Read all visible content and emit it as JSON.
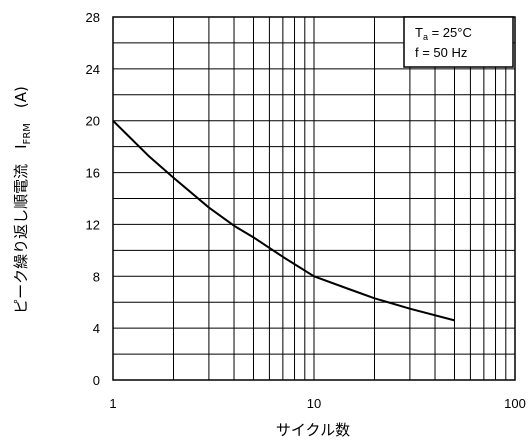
{
  "chart_data": {
    "type": "line",
    "xscale": "log",
    "xlim": [
      1,
      100
    ],
    "ylim": [
      0,
      28
    ],
    "x_ticks": [
      1,
      10,
      100
    ],
    "x_tick_labels": [
      "1",
      "10",
      "100"
    ],
    "y_ticks": [
      0,
      4,
      8,
      12,
      16,
      20,
      24,
      28
    ],
    "y_tick_labels": [
      "0",
      "4",
      "8",
      "12",
      "16",
      "20",
      "24",
      "28"
    ],
    "xlabel": "サイクル数",
    "ylabel": "ピーク繰り返し順電流　I",
    "ylabel_subscript": "FRM",
    "ylabel_unit": "(A)",
    "grid": true,
    "series": [
      {
        "x": [
          1,
          1.5,
          2,
          3,
          4,
          5,
          7,
          10,
          15,
          20,
          30,
          50
        ],
        "y": [
          20,
          17.3,
          15.6,
          13.3,
          11.9,
          11.0,
          9.5,
          8.0,
          7.0,
          6.3,
          5.5,
          4.6
        ]
      }
    ],
    "legend": {
      "position": "top-right",
      "line1_prefix": "T",
      "line1_sub": "a",
      "line1_rest": " = 25°C",
      "line2": "f = 50 Hz"
    }
  }
}
